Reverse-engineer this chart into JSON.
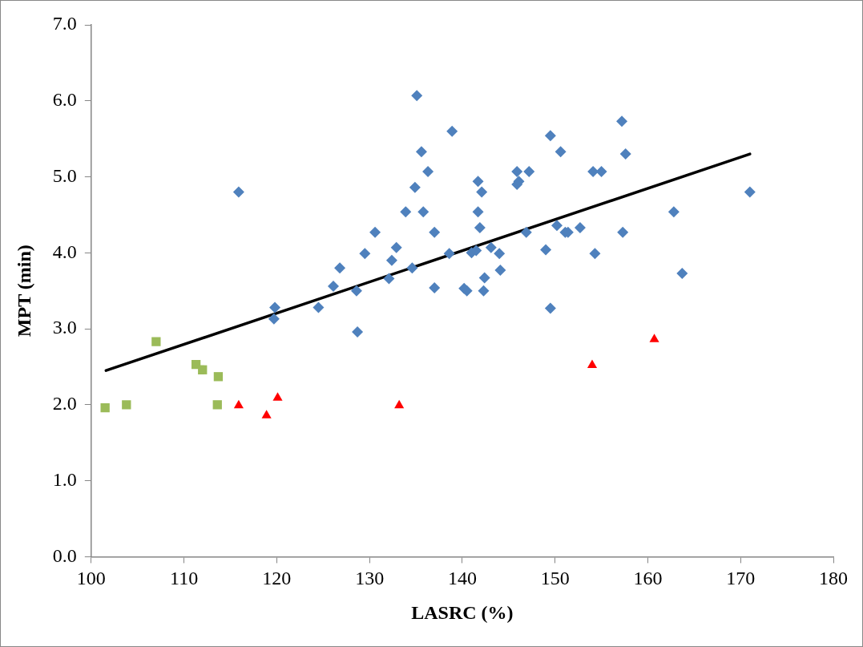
{
  "chart_data": {
    "type": "scatter",
    "xlabel": "LASRC (%)",
    "ylabel": "MPT (min)",
    "xlim": [
      100,
      180
    ],
    "xticks": [
      100,
      110,
      120,
      130,
      140,
      150,
      160,
      170,
      180
    ],
    "ylim": [
      0,
      7
    ],
    "yticks": [
      {
        "value": 0,
        "label": "0.0"
      },
      {
        "value": 1,
        "label": "1.0"
      },
      {
        "value": 2,
        "label": "2.0"
      },
      {
        "value": 3,
        "label": "3.0"
      },
      {
        "value": 4,
        "label": "4.0"
      },
      {
        "value": 5,
        "label": "5.0"
      },
      {
        "value": 6,
        "label": "6.0"
      },
      {
        "value": 7,
        "label": "7.0"
      }
    ],
    "grid": false,
    "legend": false,
    "series": [
      {
        "type": "scatter",
        "marker": "diamond",
        "color": "#4f81bd",
        "x": [
          115.9,
          119.8,
          119.7,
          124.5,
          126.1,
          126.8,
          128.6,
          128.7,
          129.5,
          130.6,
          132.1,
          132.4,
          132.9,
          134.6,
          133.9,
          134.9,
          135.1,
          135.6,
          135.8,
          136.3,
          137.0,
          137.0,
          138.6,
          138.9,
          140.2,
          140.5,
          141.0,
          141.5,
          141.7,
          141.7,
          141.9,
          142.1,
          142.3,
          142.4,
          143.1,
          144.0,
          144.1,
          145.9,
          145.9,
          146.1,
          146.9,
          147.2,
          149.0,
          149.5,
          149.5,
          150.2,
          150.6,
          151.1,
          151.4,
          152.7,
          154.1,
          154.3,
          155.0,
          157.2,
          157.3,
          157.6,
          162.8,
          163.7,
          171.0
        ],
        "values": [
          4.8,
          3.28,
          3.13,
          3.28,
          3.56,
          3.8,
          3.5,
          2.96,
          3.99,
          4.27,
          3.66,
          3.9,
          4.07,
          3.8,
          4.54,
          4.86,
          6.07,
          5.33,
          4.54,
          5.07,
          4.27,
          3.54,
          3.99,
          5.6,
          3.53,
          3.5,
          4.0,
          4.03,
          4.94,
          4.54,
          4.33,
          4.8,
          3.5,
          3.67,
          4.07,
          3.99,
          3.77,
          5.07,
          4.9,
          4.94,
          4.27,
          5.07,
          4.04,
          5.54,
          3.27,
          4.36,
          5.33,
          4.27,
          4.27,
          4.33,
          5.07,
          3.99,
          5.07,
          5.73,
          4.27,
          5.3,
          4.54,
          3.73,
          4.8
        ]
      },
      {
        "type": "scatter",
        "marker": "square",
        "color": "#9bbb59",
        "x": [
          101.5,
          103.8,
          107.0,
          111.3,
          112.0,
          113.7,
          113.6
        ],
        "values": [
          1.96,
          2.0,
          2.83,
          2.53,
          2.46,
          2.37,
          2.0
        ]
      },
      {
        "type": "scatter",
        "marker": "triangle",
        "color": "#ff0000",
        "x": [
          115.9,
          118.9,
          120.1,
          133.2,
          154.0,
          160.7
        ],
        "values": [
          1.99,
          1.86,
          2.09,
          1.99,
          2.52,
          2.86
        ]
      },
      {
        "type": "line",
        "marker": "none",
        "line_style": "solid",
        "color": "#000000",
        "x": [
          101.6,
          171.0
        ],
        "values": [
          2.45,
          5.3
        ]
      }
    ]
  }
}
